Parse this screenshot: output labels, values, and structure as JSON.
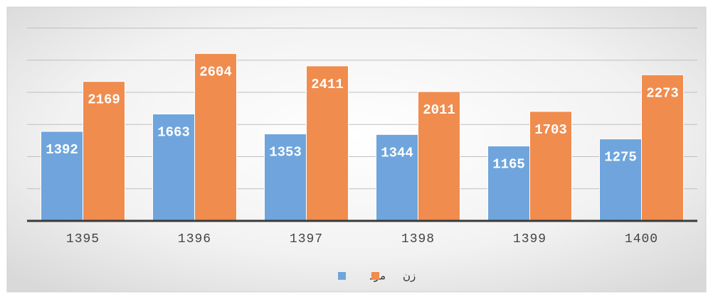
{
  "chart_data": {
    "type": "bar",
    "categories": [
      "1395",
      "1396",
      "1397",
      "1398",
      "1399",
      "1400"
    ],
    "series": [
      {
        "name": "مرد",
        "color": "#6fa5dc",
        "values": [
          1392,
          1663,
          1353,
          1344,
          1165,
          1275
        ]
      },
      {
        "name": "زن",
        "color": "#f08c4e",
        "values": [
          2169,
          2604,
          2411,
          2011,
          1703,
          2273
        ]
      }
    ],
    "ylim": [
      0,
      3000
    ],
    "yticks": [
      0,
      500,
      1000,
      1500,
      2000,
      2500,
      3000
    ],
    "grid": true,
    "legend": "bottom"
  }
}
